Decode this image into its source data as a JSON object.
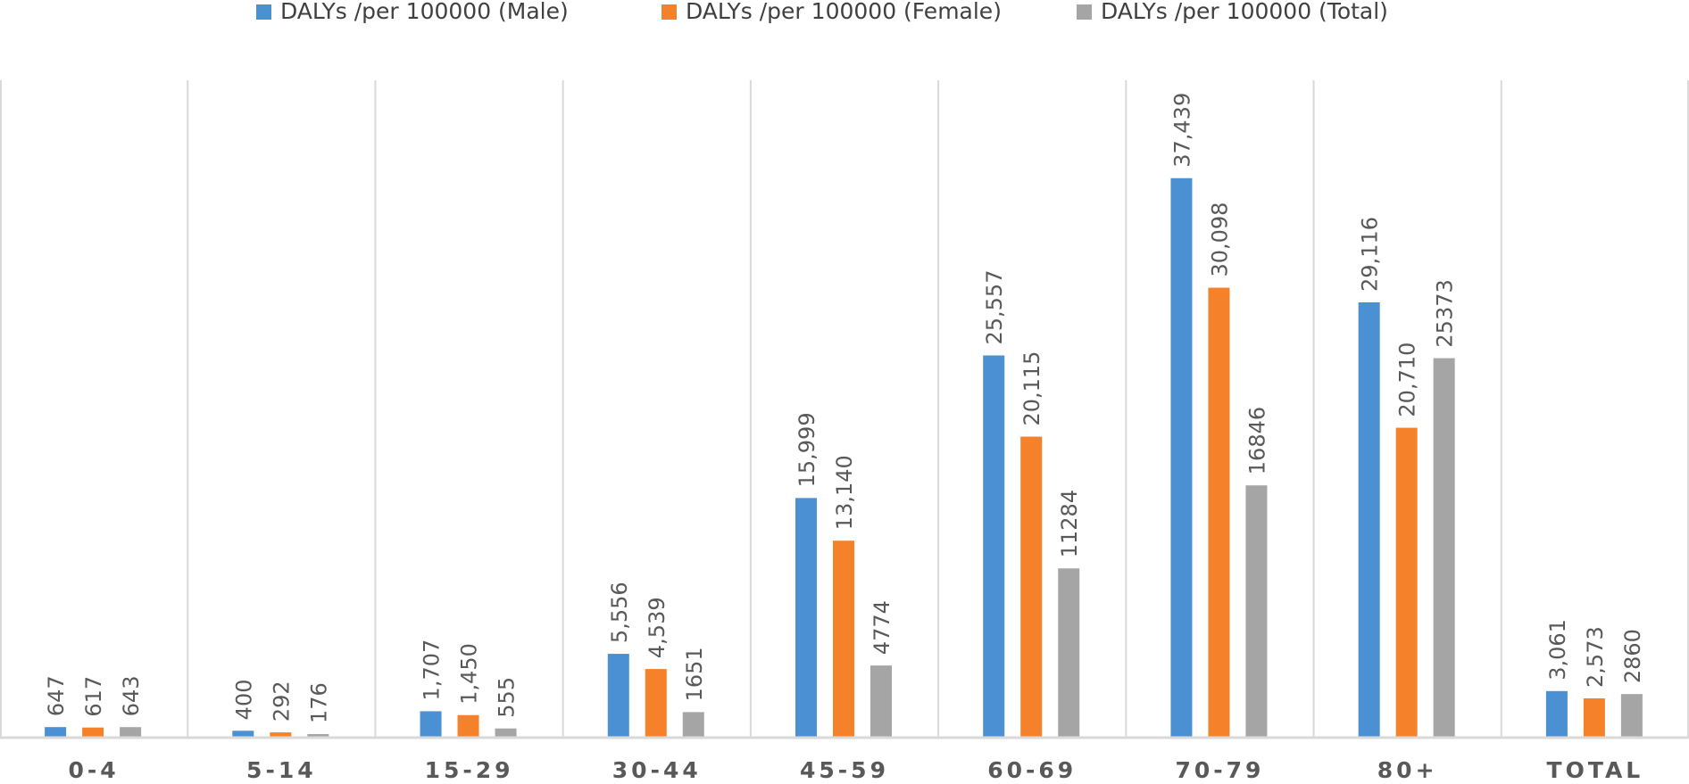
{
  "chart_data": {
    "type": "bar",
    "title": "",
    "xlabel": "",
    "ylabel": "",
    "ylim": [
      0,
      44000
    ],
    "grid": false,
    "legend_position": "top",
    "categories": [
      "0-4",
      "5-14",
      "15-29",
      "30-44",
      "45-59",
      "60-69",
      "70-79",
      "80+",
      "TOTAL"
    ],
    "series": [
      {
        "name": "DALYs /per 100000 (Male)",
        "color": "#4a90d2",
        "values": [
          647,
          400,
          1707,
          5556,
          15999,
          25557,
          37439,
          29116,
          3061
        ],
        "labels": [
          "647",
          "400",
          "1,707",
          "5,556",
          "15,999",
          "25,557",
          "37,439",
          "29,116",
          "3,061"
        ]
      },
      {
        "name": "DALYs /per 100000 (Female)",
        "color": "#f5822a",
        "values": [
          617,
          292,
          1450,
          4539,
          13140,
          20115,
          30098,
          20710,
          2573
        ],
        "labels": [
          "617",
          "292",
          "1,450",
          "4,539",
          "13,140",
          "20,115",
          "30,098",
          "20,710",
          "2,573"
        ]
      },
      {
        "name": "DALYs /per 100000 (Total)",
        "color": "#a5a5a5",
        "values": [
          643,
          176,
          555,
          1651,
          4774,
          11284,
          16846,
          25373,
          2860
        ],
        "labels": [
          "643",
          "176",
          "555",
          "1651",
          "4774",
          "11284",
          "16846",
          "25373",
          "2860"
        ]
      }
    ]
  },
  "styles": {
    "axis_color": "#d9d9d9",
    "divider_color": "#d9d9d9",
    "label_color": "#595959",
    "legend_text_color": "#404040"
  }
}
